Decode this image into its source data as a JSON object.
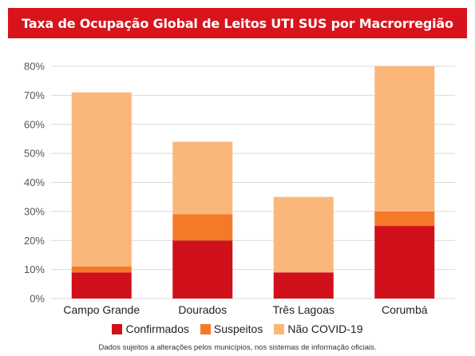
{
  "title": "Taxa de Ocupação Global de Leitos UTI SUS por Macrorregião",
  "footnote": "Dados sujeitos a alterações pelos municípios, nos sistemas de informação oficiais.",
  "colors": {
    "title_bg": "#d7141c",
    "confirmados": "#d0101a",
    "suspeitos": "#f47a2a",
    "nao_covid": "#fbb77a",
    "grid": "#d9d9d9"
  },
  "chart_data": {
    "type": "bar",
    "stacked": true,
    "title": "Taxa de Ocupação Global de Leitos UTI SUS por Macrorregião",
    "categories": [
      "Campo Grande",
      "Dourados",
      "Três Lagoas",
      "Corumbá"
    ],
    "series": [
      {
        "name": "Confirmados",
        "color": "#d0101a",
        "values": [
          9,
          20,
          9,
          25
        ]
      },
      {
        "name": "Suspeitos",
        "color": "#f47a2a",
        "values": [
          2,
          9,
          0,
          5
        ]
      },
      {
        "name": "Não COVID-19",
        "color": "#fbb77a",
        "values": [
          60,
          25,
          26,
          50
        ]
      }
    ],
    "ylim": [
      0,
      80
    ],
    "yticks": [
      "0%",
      "10%",
      "20%",
      "30%",
      "40%",
      "50%",
      "60%",
      "70%",
      "80%"
    ],
    "grid": true,
    "legend_position": "bottom"
  }
}
